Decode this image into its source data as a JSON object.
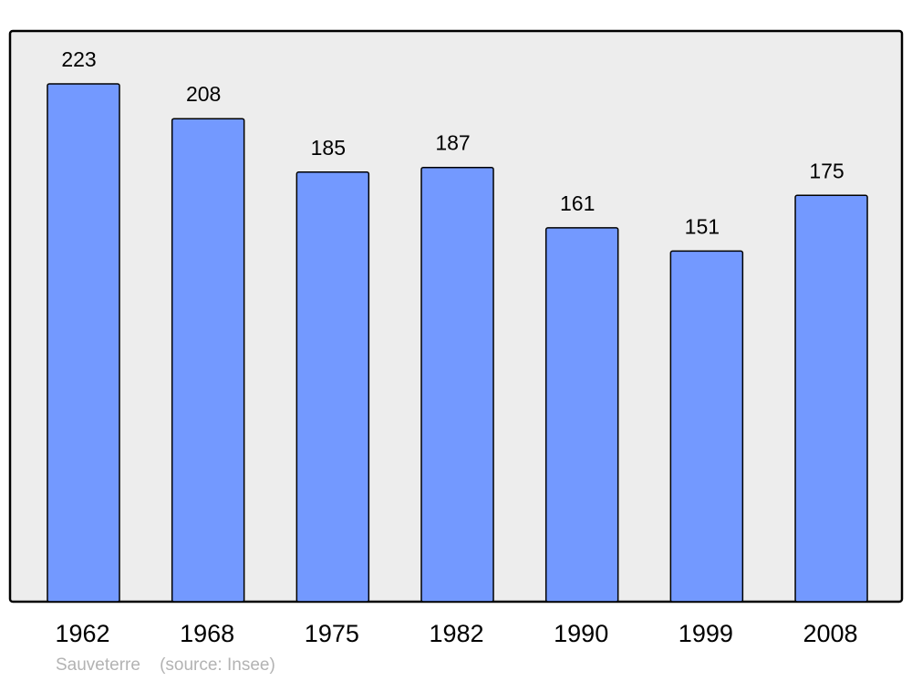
{
  "chart_data": {
    "type": "bar",
    "title": "",
    "xlabel": "",
    "ylabel": "",
    "categories": [
      "1962",
      "1968",
      "1975",
      "1982",
      "1990",
      "1999",
      "2008"
    ],
    "values": [
      223,
      208,
      185,
      187,
      161,
      151,
      175
    ],
    "ylim": [
      0,
      246
    ],
    "grid": false,
    "data_labels": true,
    "colors": {
      "bar": "#7399ff",
      "background": "#ededed",
      "border": "#000000"
    }
  },
  "footer": {
    "place": "Sauveterre",
    "source": "(source: Insee)"
  }
}
